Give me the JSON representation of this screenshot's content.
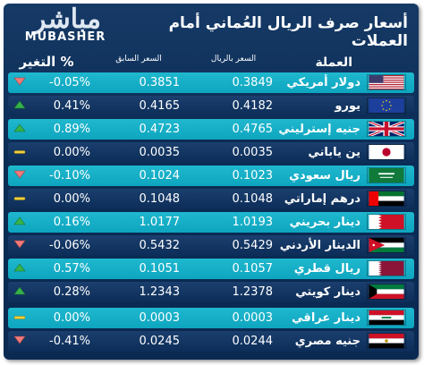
{
  "logo": {
    "arabic": "مباشر",
    "english": "MUBASHER"
  },
  "title": "أسعار صرف الريال العُماني أمام العملات",
  "headers": {
    "change": "التغير %",
    "previous": "السعر السابق",
    "rate": "السعر بالريال",
    "currency": "العملة"
  },
  "colors": {
    "up": "#35b34a",
    "down": "#f07a7a",
    "flat": "#f0d03a",
    "light_row": "#14aec7",
    "dark_row": "#0f3360"
  },
  "rows": [
    {
      "name": "دولار أمريكي",
      "rate": "0.3849",
      "previous": "0.3851",
      "change": "-0.05%",
      "trend": "down",
      "flag": "us-flag",
      "style": "light"
    },
    {
      "name": "يورو",
      "rate": "0.4182",
      "previous": "0.4165",
      "change": "0.41%",
      "trend": "up",
      "flag": "eu-flag",
      "style": "dark"
    },
    {
      "name": "جنيه إسترليني",
      "rate": "0.4765",
      "previous": "0.4723",
      "change": "0.89%",
      "trend": "up",
      "flag": "uk-flag",
      "style": "light"
    },
    {
      "name": "ين ياباني",
      "rate": "0.0035",
      "previous": "0.0035",
      "change": "0.00%",
      "trend": "flat",
      "flag": "japan-flag",
      "style": "dark"
    },
    {
      "name": "ريال سعودي",
      "rate": "0.1023",
      "previous": "0.1024",
      "change": "-0.10%",
      "trend": "down",
      "flag": "saudi-flag",
      "style": "light"
    },
    {
      "name": "درهم إماراتي",
      "rate": "0.1048",
      "previous": "0.1048",
      "change": "0.00%",
      "trend": "flat",
      "flag": "uae-flag",
      "style": "dark"
    },
    {
      "name": "دينار بحريني",
      "rate": "1.0193",
      "previous": "1.0177",
      "change": "0.16%",
      "trend": "up",
      "flag": "bahrain-flag",
      "style": "light"
    },
    {
      "name": "الدينار الأردني",
      "rate": "0.5429",
      "previous": "0.5432",
      "change": "-0.06%",
      "trend": "down",
      "flag": "jordan-flag",
      "style": "dark"
    },
    {
      "name": "ريال قطري",
      "rate": "0.1057",
      "previous": "0.1051",
      "change": "0.57%",
      "trend": "up",
      "flag": "qatar-flag",
      "style": "light"
    },
    {
      "name": "دينار كويتي",
      "rate": "1.2378",
      "previous": "1.2343",
      "change": "0.28%",
      "trend": "up",
      "flag": "kuwait-flag",
      "style": "dark"
    },
    {
      "name": "دينار عراقي",
      "rate": "0.0003",
      "previous": "0.0003",
      "change": "0.00%",
      "trend": "flat",
      "flag": "iraq-flag",
      "style": "light"
    },
    {
      "name": "جنيه مصري",
      "rate": "0.0244",
      "previous": "0.0245",
      "change": "-0.41%",
      "trend": "down",
      "flag": "egypt-flag",
      "style": "dark"
    }
  ]
}
